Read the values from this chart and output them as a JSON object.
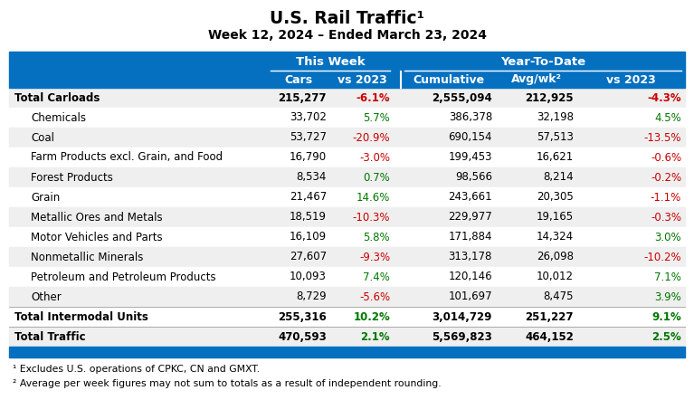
{
  "title": "U.S. Rail Traffic¹",
  "subtitle": "Week 12, 2024 – Ended March 23, 2024",
  "header_bg": "#0570C0",
  "rows": [
    {
      "label": "Total Carloads",
      "indent": false,
      "bold": true,
      "bg": "#efefef",
      "cars": "215,277",
      "vs2023_tw": "-6.1%",
      "vs2023_tw_color": "#cc0000",
      "cumulative": "2,555,094",
      "avgwk": "212,925",
      "vs2023_ytd": "-4.3%",
      "vs2023_ytd_color": "#cc0000"
    },
    {
      "label": "Chemicals",
      "indent": true,
      "bold": false,
      "bg": "#ffffff",
      "cars": "33,702",
      "vs2023_tw": "5.7%",
      "vs2023_tw_color": "#007700",
      "cumulative": "386,378",
      "avgwk": "32,198",
      "vs2023_ytd": "4.5%",
      "vs2023_ytd_color": "#007700"
    },
    {
      "label": "Coal",
      "indent": true,
      "bold": false,
      "bg": "#efefef",
      "cars": "53,727",
      "vs2023_tw": "-20.9%",
      "vs2023_tw_color": "#cc0000",
      "cumulative": "690,154",
      "avgwk": "57,513",
      "vs2023_ytd": "-13.5%",
      "vs2023_ytd_color": "#cc0000"
    },
    {
      "label": "Farm Products excl. Grain, and Food",
      "indent": true,
      "bold": false,
      "bg": "#ffffff",
      "cars": "16,790",
      "vs2023_tw": "-3.0%",
      "vs2023_tw_color": "#cc0000",
      "cumulative": "199,453",
      "avgwk": "16,621",
      "vs2023_ytd": "-0.6%",
      "vs2023_ytd_color": "#cc0000"
    },
    {
      "label": "Forest Products",
      "indent": true,
      "bold": false,
      "bg": "#efefef",
      "cars": "8,534",
      "vs2023_tw": "0.7%",
      "vs2023_tw_color": "#007700",
      "cumulative": "98,566",
      "avgwk": "8,214",
      "vs2023_ytd": "-0.2%",
      "vs2023_ytd_color": "#cc0000"
    },
    {
      "label": "Grain",
      "indent": true,
      "bold": false,
      "bg": "#ffffff",
      "cars": "21,467",
      "vs2023_tw": "14.6%",
      "vs2023_tw_color": "#007700",
      "cumulative": "243,661",
      "avgwk": "20,305",
      "vs2023_ytd": "-1.1%",
      "vs2023_ytd_color": "#cc0000"
    },
    {
      "label": "Metallic Ores and Metals",
      "indent": true,
      "bold": false,
      "bg": "#efefef",
      "cars": "18,519",
      "vs2023_tw": "-10.3%",
      "vs2023_tw_color": "#cc0000",
      "cumulative": "229,977",
      "avgwk": "19,165",
      "vs2023_ytd": "-0.3%",
      "vs2023_ytd_color": "#cc0000"
    },
    {
      "label": "Motor Vehicles and Parts",
      "indent": true,
      "bold": false,
      "bg": "#ffffff",
      "cars": "16,109",
      "vs2023_tw": "5.8%",
      "vs2023_tw_color": "#007700",
      "cumulative": "171,884",
      "avgwk": "14,324",
      "vs2023_ytd": "3.0%",
      "vs2023_ytd_color": "#007700"
    },
    {
      "label": "Nonmetallic Minerals",
      "indent": true,
      "bold": false,
      "bg": "#efefef",
      "cars": "27,607",
      "vs2023_tw": "-9.3%",
      "vs2023_tw_color": "#cc0000",
      "cumulative": "313,178",
      "avgwk": "26,098",
      "vs2023_ytd": "-10.2%",
      "vs2023_ytd_color": "#cc0000"
    },
    {
      "label": "Petroleum and Petroleum Products",
      "indent": true,
      "bold": false,
      "bg": "#ffffff",
      "cars": "10,093",
      "vs2023_tw": "7.4%",
      "vs2023_tw_color": "#007700",
      "cumulative": "120,146",
      "avgwk": "10,012",
      "vs2023_ytd": "7.1%",
      "vs2023_ytd_color": "#007700"
    },
    {
      "label": "Other",
      "indent": true,
      "bold": false,
      "bg": "#efefef",
      "cars": "8,729",
      "vs2023_tw": "-5.6%",
      "vs2023_tw_color": "#cc0000",
      "cumulative": "101,697",
      "avgwk": "8,475",
      "vs2023_ytd": "3.9%",
      "vs2023_ytd_color": "#007700"
    },
    {
      "label": "Total Intermodal Units",
      "indent": false,
      "bold": true,
      "bg": "#ffffff",
      "cars": "255,316",
      "vs2023_tw": "10.2%",
      "vs2023_tw_color": "#007700",
      "cumulative": "3,014,729",
      "avgwk": "251,227",
      "vs2023_ytd": "9.1%",
      "vs2023_ytd_color": "#007700"
    },
    {
      "label": "Total Traffic",
      "indent": false,
      "bold": true,
      "bg": "#efefef",
      "cars": "470,593",
      "vs2023_tw": "2.1%",
      "vs2023_tw_color": "#007700",
      "cumulative": "5,569,823",
      "avgwk": "464,152",
      "vs2023_ytd": "2.5%",
      "vs2023_ytd_color": "#007700"
    }
  ],
  "footnote1": "¹ Excludes U.S. operations of CPKC, CN and GMXT.",
  "footnote2": "² Average per week figures may not sum to totals as a result of independent rounding.",
  "footer_bg": "#0570C0"
}
